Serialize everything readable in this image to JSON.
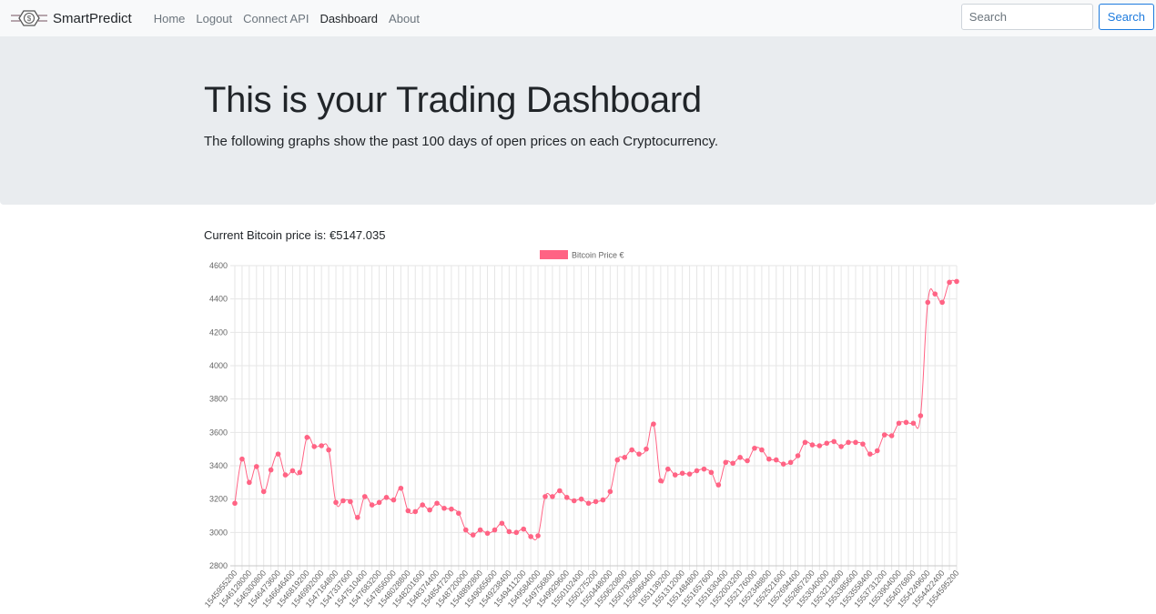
{
  "navbar": {
    "brand": "SmartPredict",
    "links": [
      "Home",
      "Logout",
      "Connect API",
      "Dashboard",
      "About"
    ],
    "active_link": "Dashboard",
    "search_placeholder": "Search",
    "search_button": "Search"
  },
  "jumbotron": {
    "title": "This is your Trading Dashboard",
    "lead": "The following graphs show the past 100 days of open prices on each Cryptocurrency."
  },
  "price": {
    "label": "Current Bitcoin price is: ",
    "value": "€5147.035"
  },
  "colors": {
    "accent": "#1e7bde",
    "series": "#ff6384"
  },
  "chart_data": {
    "type": "line",
    "legend": "Bitcoin Price €",
    "legend_position": "top",
    "grid": true,
    "ylim": [
      2800,
      4600
    ],
    "yticks": [
      2800,
      3000,
      3200,
      3400,
      3600,
      3800,
      4000,
      4200,
      4400,
      4600
    ],
    "x": [
      "1545955200",
      "1546041600",
      "1546128000",
      "1546214400",
      "1546300800",
      "1546387200",
      "1546473600",
      "1546560000",
      "1546646400",
      "1546732800",
      "1546819200",
      "1546905600",
      "1546992000",
      "1547078400",
      "1547164800",
      "1547251200",
      "1547337600",
      "1547424000",
      "1547510400",
      "1547596800",
      "1547683200",
      "1547769600",
      "1547856000",
      "1547942400",
      "1548028800",
      "1548115200",
      "1548201600",
      "1548288000",
      "1548374400",
      "1548460800",
      "1548547200",
      "1548633600",
      "1548720000",
      "1548806400",
      "1548892800",
      "1548979200",
      "1549065600",
      "1549152000",
      "1549238400",
      "1549324800",
      "1549411200",
      "1549497600",
      "1549584000",
      "1549670400",
      "1549756800",
      "1549843200",
      "1549929600",
      "1550016000",
      "1550102400",
      "1550188800",
      "1550275200",
      "1550361600",
      "1550448000",
      "1550534400",
      "1550620800",
      "1550707200",
      "1550793600",
      "1550880000",
      "1550966400",
      "1551052800",
      "1551139200",
      "1551225600",
      "1551312000",
      "1551398400",
      "1551484800",
      "1551571200",
      "1551657600",
      "1551744000",
      "1551830400",
      "1551916800",
      "1552003200",
      "1552089600",
      "1552176000",
      "1552262400",
      "1552348800",
      "1552435200",
      "1552521600",
      "1552608000",
      "1552694400",
      "1552780800",
      "1552867200",
      "1552953600",
      "1553040000",
      "1553126400",
      "1553212800",
      "1553299200",
      "1553385600",
      "1553472000",
      "1553558400",
      "1553644800",
      "1553731200",
      "1553817600",
      "1553904000",
      "1553990400",
      "1554076800",
      "1554163200",
      "1554249600",
      "1554336000",
      "1554422400",
      "1554508800",
      "1554595200"
    ],
    "values": [
      3175,
      3440,
      3300,
      3395,
      3245,
      3375,
      3470,
      3345,
      3370,
      3360,
      3570,
      3515,
      3520,
      3495,
      3180,
      3190,
      3185,
      3090,
      3215,
      3165,
      3180,
      3210,
      3195,
      3265,
      3130,
      3125,
      3165,
      3135,
      3175,
      3145,
      3140,
      3115,
      3015,
      2985,
      3015,
      2995,
      3015,
      3055,
      3005,
      3000,
      3020,
      2975,
      2980,
      3215,
      3215,
      3250,
      3210,
      3190,
      3200,
      3175,
      3185,
      3195,
      3245,
      3435,
      3450,
      3495,
      3470,
      3500,
      3650,
      3310,
      3380,
      3345,
      3355,
      3350,
      3370,
      3380,
      3360,
      3285,
      3420,
      3415,
      3450,
      3430,
      3505,
      3495,
      3440,
      3435,
      3410,
      3420,
      3460,
      3540,
      3525,
      3520,
      3535,
      3545,
      3515,
      3540,
      3540,
      3530,
      3470,
      3490,
      3585,
      3580,
      3655,
      3660,
      3655,
      3700,
      4380,
      4430,
      4380,
      4500,
      4505
    ]
  }
}
